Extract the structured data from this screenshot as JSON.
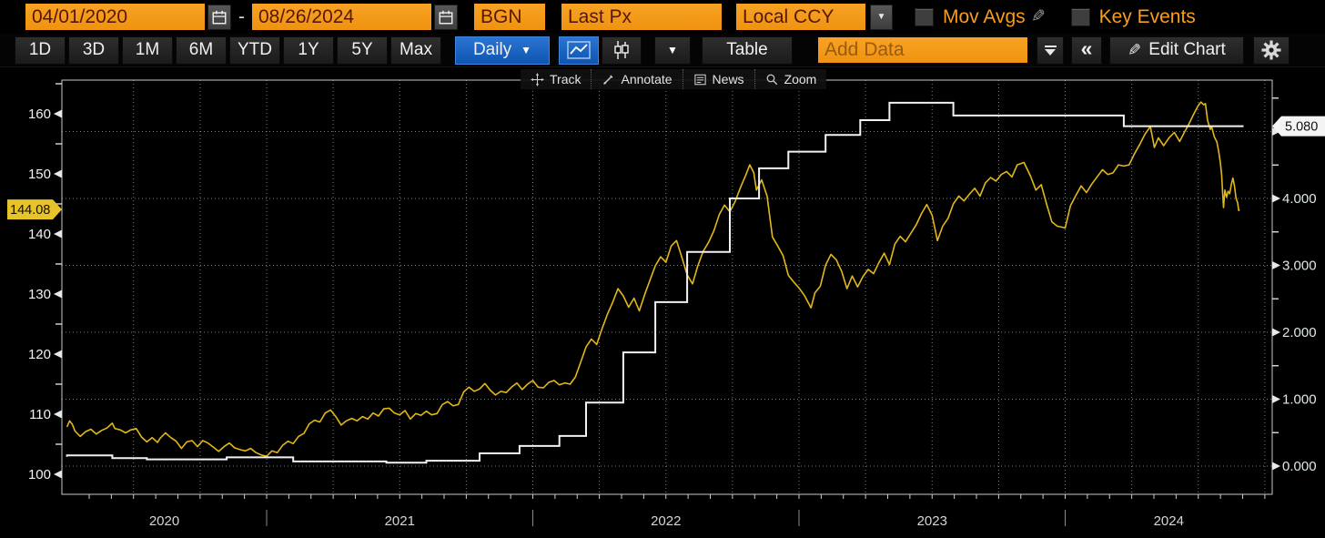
{
  "header": {
    "date_from": "04/01/2020",
    "dash": "-",
    "date_to": "08/26/2024",
    "source": "BGN",
    "price_field": "Last Px",
    "currency_mode": "Local CCY",
    "mov_avgs": "Mov Avgs",
    "key_events": "Key Events"
  },
  "toolbar": {
    "ranges": [
      "1D",
      "3D",
      "1M",
      "6M",
      "YTD",
      "1Y",
      "5Y",
      "Max"
    ],
    "period": "Daily",
    "caret_glyph": "▼",
    "table": "Table",
    "add_data_placeholder": "Add Data",
    "collapse_glyph": "«",
    "edit_chart": "Edit Chart"
  },
  "chart_toolbar": {
    "track": "Track",
    "annotate": "Annotate",
    "news": "News",
    "zoom": "Zoom"
  },
  "colors": {
    "accent_orange": "#f89d1c",
    "selected_blue": "#1663c9",
    "price_line": "#e2b718",
    "rate_line": "#f2f2f2",
    "price_badge_bg": "#e7c32a",
    "rate_badge_bg": "#f4f4f4"
  },
  "chart_data": {
    "type": "line",
    "grid": "dotted",
    "x_axis": {
      "labels": [
        "2020",
        "2021",
        "2022",
        "2023",
        "2024"
      ],
      "boundaries": [
        2021,
        2022,
        2023,
        2024
      ],
      "range": [
        2020.23,
        2024.78
      ]
    },
    "left_axis": {
      "ticks": [
        100,
        110,
        120,
        130,
        140,
        150,
        160
      ],
      "last_value_label": "144.08",
      "last_value": 144.08
    },
    "right_axis": {
      "tick_labels": [
        "0.000",
        "1.000",
        "2.000",
        "3.000",
        "4.000",
        "5.000"
      ],
      "tick_values": [
        0,
        1,
        2,
        3,
        4,
        5
      ],
      "last_value_label": "5.080",
      "last_value": 5.08
    },
    "series": [
      {
        "name": "price",
        "axis": "left",
        "type": "line",
        "color": "#e2b718",
        "data": [
          [
            2020.25,
            107.9
          ],
          [
            2020.26,
            108.9
          ],
          [
            2020.27,
            108.3
          ],
          [
            2020.28,
            107.2
          ],
          [
            2020.3,
            106.3
          ],
          [
            2020.32,
            107.1
          ],
          [
            2020.34,
            107.5
          ],
          [
            2020.36,
            106.7
          ],
          [
            2020.38,
            107.3
          ],
          [
            2020.4,
            107.7
          ],
          [
            2020.42,
            108.5
          ],
          [
            2020.43,
            107.6
          ],
          [
            2020.45,
            107.4
          ],
          [
            2020.47,
            106.9
          ],
          [
            2020.49,
            107.4
          ],
          [
            2020.51,
            107.6
          ],
          [
            2020.53,
            106.2
          ],
          [
            2020.55,
            105.4
          ],
          [
            2020.57,
            106.1
          ],
          [
            2020.59,
            105.3
          ],
          [
            2020.6,
            106.0
          ],
          [
            2020.62,
            106.9
          ],
          [
            2020.64,
            106.1
          ],
          [
            2020.66,
            105.5
          ],
          [
            2020.68,
            104.3
          ],
          [
            2020.7,
            105.4
          ],
          [
            2020.72,
            105.6
          ],
          [
            2020.74,
            104.6
          ],
          [
            2020.76,
            105.6
          ],
          [
            2020.78,
            105.2
          ],
          [
            2020.8,
            104.5
          ],
          [
            2020.82,
            103.8
          ],
          [
            2020.84,
            104.6
          ],
          [
            2020.86,
            105.2
          ],
          [
            2020.88,
            104.4
          ],
          [
            2020.9,
            104.1
          ],
          [
            2020.92,
            103.9
          ],
          [
            2020.94,
            104.3
          ],
          [
            2020.96,
            103.6
          ],
          [
            2020.98,
            103.2
          ],
          [
            2021.0,
            103.0
          ],
          [
            2021.02,
            103.9
          ],
          [
            2021.04,
            103.6
          ],
          [
            2021.06,
            104.8
          ],
          [
            2021.08,
            105.5
          ],
          [
            2021.1,
            105.1
          ],
          [
            2021.12,
            106.3
          ],
          [
            2021.14,
            106.8
          ],
          [
            2021.16,
            108.4
          ],
          [
            2021.18,
            109.0
          ],
          [
            2021.2,
            108.7
          ],
          [
            2021.22,
            110.2
          ],
          [
            2021.24,
            110.7
          ],
          [
            2021.26,
            109.6
          ],
          [
            2021.28,
            108.2
          ],
          [
            2021.3,
            108.9
          ],
          [
            2021.32,
            109.3
          ],
          [
            2021.34,
            108.9
          ],
          [
            2021.36,
            109.6
          ],
          [
            2021.38,
            109.2
          ],
          [
            2021.4,
            110.2
          ],
          [
            2021.42,
            109.7
          ],
          [
            2021.44,
            110.9
          ],
          [
            2021.46,
            111.0
          ],
          [
            2021.48,
            110.2
          ],
          [
            2021.5,
            109.9
          ],
          [
            2021.52,
            110.6
          ],
          [
            2021.54,
            109.2
          ],
          [
            2021.56,
            110.1
          ],
          [
            2021.58,
            109.8
          ],
          [
            2021.6,
            110.5
          ],
          [
            2021.62,
            109.9
          ],
          [
            2021.64,
            110.1
          ],
          [
            2021.66,
            111.6
          ],
          [
            2021.68,
            112.1
          ],
          [
            2021.7,
            111.4
          ],
          [
            2021.72,
            111.6
          ],
          [
            2021.74,
            113.7
          ],
          [
            2021.76,
            114.5
          ],
          [
            2021.78,
            113.8
          ],
          [
            2021.8,
            114.2
          ],
          [
            2021.82,
            115.1
          ],
          [
            2021.84,
            114.0
          ],
          [
            2021.86,
            113.2
          ],
          [
            2021.88,
            113.8
          ],
          [
            2021.9,
            113.6
          ],
          [
            2021.92,
            114.5
          ],
          [
            2021.94,
            115.2
          ],
          [
            2021.96,
            114.1
          ],
          [
            2021.98,
            115.0
          ],
          [
            2022.0,
            115.6
          ],
          [
            2022.02,
            114.5
          ],
          [
            2022.04,
            114.4
          ],
          [
            2022.06,
            115.3
          ],
          [
            2022.08,
            115.6
          ],
          [
            2022.1,
            114.9
          ],
          [
            2022.12,
            115.2
          ],
          [
            2022.14,
            115.0
          ],
          [
            2022.16,
            116.2
          ],
          [
            2022.18,
            118.7
          ],
          [
            2022.2,
            121.2
          ],
          [
            2022.22,
            122.5
          ],
          [
            2022.24,
            121.6
          ],
          [
            2022.26,
            124.2
          ],
          [
            2022.28,
            126.6
          ],
          [
            2022.3,
            128.6
          ],
          [
            2022.32,
            130.9
          ],
          [
            2022.34,
            129.7
          ],
          [
            2022.36,
            127.8
          ],
          [
            2022.38,
            129.3
          ],
          [
            2022.4,
            127.2
          ],
          [
            2022.42,
            129.9
          ],
          [
            2022.44,
            132.3
          ],
          [
            2022.46,
            134.7
          ],
          [
            2022.48,
            136.2
          ],
          [
            2022.5,
            135.3
          ],
          [
            2022.52,
            138.0
          ],
          [
            2022.54,
            138.9
          ],
          [
            2022.56,
            136.1
          ],
          [
            2022.58,
            133.2
          ],
          [
            2022.6,
            131.7
          ],
          [
            2022.62,
            134.7
          ],
          [
            2022.64,
            137.1
          ],
          [
            2022.66,
            138.6
          ],
          [
            2022.68,
            140.5
          ],
          [
            2022.7,
            143.2
          ],
          [
            2022.72,
            144.8
          ],
          [
            2022.74,
            143.7
          ],
          [
            2022.76,
            145.4
          ],
          [
            2022.78,
            147.7
          ],
          [
            2022.8,
            149.8
          ],
          [
            2022.815,
            151.5
          ],
          [
            2022.83,
            150.2
          ],
          [
            2022.84,
            147.3
          ],
          [
            2022.86,
            149.0
          ],
          [
            2022.88,
            146.3
          ],
          [
            2022.9,
            139.5
          ],
          [
            2022.92,
            138.0
          ],
          [
            2022.94,
            136.4
          ],
          [
            2022.96,
            133.1
          ],
          [
            2022.98,
            132.0
          ],
          [
            2023.0,
            131.0
          ],
          [
            2023.02,
            129.8
          ],
          [
            2023.045,
            127.7
          ],
          [
            2023.06,
            130.2
          ],
          [
            2023.08,
            131.3
          ],
          [
            2023.1,
            134.8
          ],
          [
            2023.12,
            136.6
          ],
          [
            2023.14,
            135.7
          ],
          [
            2023.16,
            133.8
          ],
          [
            2023.18,
            130.9
          ],
          [
            2023.2,
            133.0
          ],
          [
            2023.22,
            131.2
          ],
          [
            2023.24,
            132.9
          ],
          [
            2023.26,
            134.1
          ],
          [
            2023.28,
            133.4
          ],
          [
            2023.3,
            135.2
          ],
          [
            2023.32,
            136.8
          ],
          [
            2023.34,
            134.9
          ],
          [
            2023.36,
            138.3
          ],
          [
            2023.38,
            139.6
          ],
          [
            2023.4,
            138.7
          ],
          [
            2023.42,
            140.1
          ],
          [
            2023.44,
            141.5
          ],
          [
            2023.46,
            143.4
          ],
          [
            2023.48,
            144.9
          ],
          [
            2023.5,
            143.1
          ],
          [
            2023.52,
            138.9
          ],
          [
            2023.54,
            141.3
          ],
          [
            2023.56,
            142.6
          ],
          [
            2023.58,
            145.0
          ],
          [
            2023.6,
            146.3
          ],
          [
            2023.62,
            145.5
          ],
          [
            2023.64,
            146.6
          ],
          [
            2023.66,
            147.6
          ],
          [
            2023.68,
            146.3
          ],
          [
            2023.7,
            148.5
          ],
          [
            2023.72,
            149.4
          ],
          [
            2023.74,
            148.8
          ],
          [
            2023.76,
            149.9
          ],
          [
            2023.78,
            150.4
          ],
          [
            2023.8,
            149.5
          ],
          [
            2023.82,
            151.5
          ],
          [
            2023.845,
            151.9
          ],
          [
            2023.87,
            149.6
          ],
          [
            2023.89,
            147.3
          ],
          [
            2023.91,
            148.2
          ],
          [
            2023.93,
            145.0
          ],
          [
            2023.95,
            142.0
          ],
          [
            2023.97,
            141.3
          ],
          [
            2024.0,
            141.0
          ],
          [
            2024.02,
            144.7
          ],
          [
            2024.04,
            146.4
          ],
          [
            2024.06,
            148.0
          ],
          [
            2024.08,
            146.9
          ],
          [
            2024.1,
            148.3
          ],
          [
            2024.12,
            149.5
          ],
          [
            2024.14,
            150.7
          ],
          [
            2024.16,
            149.9
          ],
          [
            2024.18,
            150.2
          ],
          [
            2024.2,
            151.5
          ],
          [
            2024.22,
            151.3
          ],
          [
            2024.24,
            151.5
          ],
          [
            2024.26,
            153.3
          ],
          [
            2024.28,
            154.9
          ],
          [
            2024.3,
            156.6
          ],
          [
            2024.32,
            157.9
          ],
          [
            2024.335,
            154.4
          ],
          [
            2024.35,
            156.0
          ],
          [
            2024.37,
            154.7
          ],
          [
            2024.39,
            156.0
          ],
          [
            2024.41,
            156.9
          ],
          [
            2024.43,
            155.4
          ],
          [
            2024.45,
            157.1
          ],
          [
            2024.46,
            157.9
          ],
          [
            2024.48,
            159.7
          ],
          [
            2024.5,
            161.4
          ],
          [
            2024.51,
            161.95
          ],
          [
            2024.52,
            161.5
          ],
          [
            2024.527,
            161.7
          ],
          [
            2024.535,
            158.9
          ],
          [
            2024.545,
            157.4
          ],
          [
            2024.55,
            157.9
          ],
          [
            2024.56,
            156.2
          ],
          [
            2024.57,
            155.3
          ],
          [
            2024.577,
            153.6
          ],
          [
            2024.583,
            151.9
          ],
          [
            2024.588,
            149.7
          ],
          [
            2024.592,
            146.4
          ],
          [
            2024.595,
            144.4
          ],
          [
            2024.6,
            147.3
          ],
          [
            2024.606,
            146.1
          ],
          [
            2024.612,
            147.1
          ],
          [
            2024.618,
            146.7
          ],
          [
            2024.624,
            148.2
          ],
          [
            2024.63,
            149.3
          ],
          [
            2024.636,
            148.0
          ],
          [
            2024.642,
            145.9
          ],
          [
            2024.648,
            145.2
          ],
          [
            2024.652,
            143.9
          ],
          [
            2024.655,
            144.08
          ]
        ]
      },
      {
        "name": "rate",
        "axis": "right",
        "type": "step",
        "color": "#f2f2f2",
        "data": [
          [
            2020.25,
            0.14
          ],
          [
            2020.42,
            0.16
          ],
          [
            2020.55,
            0.12
          ],
          [
            2020.85,
            0.1
          ],
          [
            2021.1,
            0.13
          ],
          [
            2021.45,
            0.07
          ],
          [
            2021.6,
            0.05
          ],
          [
            2021.8,
            0.08
          ],
          [
            2021.95,
            0.19
          ],
          [
            2022.1,
            0.3
          ],
          [
            2022.2,
            0.45
          ],
          [
            2022.34,
            0.95
          ],
          [
            2022.46,
            1.7
          ],
          [
            2022.58,
            2.45
          ],
          [
            2022.74,
            3.2
          ],
          [
            2022.85,
            4.0
          ],
          [
            2022.96,
            4.45
          ],
          [
            2023.1,
            4.7
          ],
          [
            2023.23,
            4.95
          ],
          [
            2023.34,
            5.17
          ],
          [
            2023.58,
            5.43
          ],
          [
            2024.22,
            5.24
          ],
          [
            2024.6,
            5.08
          ],
          [
            2024.67,
            5.08
          ]
        ]
      }
    ]
  }
}
